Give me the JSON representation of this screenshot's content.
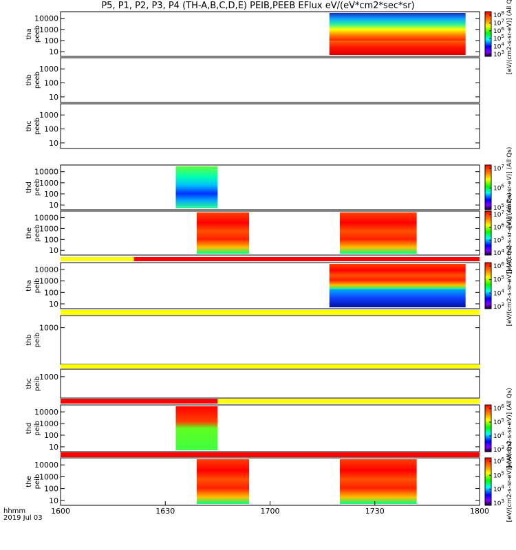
{
  "title": "P5, P1, P2, P3, P4 (TH-A,B,C,D,E) PEIB,PEEB EFlux eV/(eV*cm2*sec*sr)",
  "footer": {
    "hhmm": "hhmm",
    "date": "2019 Jul 03"
  },
  "colors": {
    "red": "#ff0000",
    "yellow": "#ffff00",
    "black": "#000000"
  },
  "chart_data": {
    "type": "heatmap",
    "x_axis": {
      "ticks": [
        "1600",
        "1630",
        "1700",
        "1730",
        "1800"
      ],
      "range_minutes": [
        0,
        120
      ],
      "format": "hhmm"
    },
    "panels": [
      {
        "id": "tha-peeb",
        "label_top": "tha",
        "label_bot": "peeb",
        "y_ticks": [
          "10000",
          "1000",
          "100",
          "10"
        ],
        "ylim": [
          5,
          30000
        ],
        "log": true,
        "blocks": [
          {
            "x0": 77,
            "x1": 116,
            "y0": 100,
            "y1": 30000,
            "palette": "mix-hot-cold"
          },
          {
            "x0": 77,
            "x1": 116,
            "y0": 5,
            "y1": 100,
            "palette": "red"
          }
        ],
        "colorbar": {
          "ticks": [
            "10^8",
            "10^7",
            "10^6",
            "10^5",
            "10^4",
            "10^3"
          ],
          "title": "[eV/(cm2-s-sr-eV)] (All Qs)"
        }
      },
      {
        "id": "thb-peeb",
        "label_top": "thb",
        "label_bot": "peeb",
        "y_ticks": [
          "1000",
          "100",
          "10"
        ],
        "ylim": [
          5,
          5000
        ],
        "log": true,
        "blocks": []
      },
      {
        "id": "thc-peeb",
        "label_top": "thc",
        "label_bot": "peeb",
        "y_ticks": [
          "1000",
          "100",
          "10"
        ],
        "ylim": [
          5,
          5000
        ],
        "log": true,
        "blocks": []
      },
      {
        "id": "thd-peeb",
        "label_top": "thd",
        "label_bot": "peeb",
        "y_ticks": [
          "10000",
          "1000",
          "100",
          "10"
        ],
        "ylim": [
          5,
          30000
        ],
        "log": true,
        "blocks": [
          {
            "x0": 33,
            "x1": 45,
            "y0": 5,
            "y1": 30000,
            "palette": "gradient-cold-bottom"
          }
        ],
        "colorbar": {
          "ticks": [
            "10^7",
            "10^6",
            "10^5"
          ],
          "title": "[eV/(cm2-s-sr-eV)] (All Qs)"
        }
      },
      {
        "id": "the-peeb",
        "label_top": "the",
        "label_bot": "peeb",
        "y_ticks": [
          "10000",
          "1000",
          "100",
          "10"
        ],
        "ylim": [
          5,
          30000
        ],
        "log": true,
        "blocks": [
          {
            "x0": 39,
            "x1": 54,
            "y0": 5,
            "y1": 30000,
            "palette": "mix-hot"
          },
          {
            "x0": 80,
            "x1": 102,
            "y0": 5,
            "y1": 30000,
            "palette": "mix-hot"
          }
        ],
        "colorbar": {
          "ticks": [
            "10^7",
            "10^6",
            "10^5",
            "10^4"
          ],
          "title": "[eV/(cm2-s-sr-eV)] (All Qs)"
        }
      },
      {
        "id": "tha-peib",
        "label_top": "tha",
        "label_bot": "peib",
        "y_ticks": [
          "10000",
          "1000",
          "100",
          "10"
        ],
        "ylim": [
          5,
          30000
        ],
        "log": true,
        "blocks": [
          {
            "x0": 77,
            "x1": 116,
            "y0": 200,
            "y1": 30000,
            "palette": "mix-hot"
          },
          {
            "x0": 77,
            "x1": 116,
            "y0": 5,
            "y1": 200,
            "palette": "noise-cold"
          }
        ],
        "colorbar": {
          "ticks": [
            "10^6",
            "10^5",
            "10^4",
            "10^3"
          ],
          "title": "[eV/(cm2-s-sr-eV)] (All Qs)"
        }
      },
      {
        "id": "thb-peib",
        "label_top": "thb",
        "label_bot": "peib",
        "y_ticks": [
          "1000"
        ],
        "ylim": [
          5,
          5000
        ],
        "log": true,
        "blocks": []
      },
      {
        "id": "thc-peib",
        "label_top": "thc",
        "label_bot": "peib",
        "y_ticks": [
          "1000"
        ],
        "ylim": [
          5,
          5000
        ],
        "log": true,
        "blocks": []
      },
      {
        "id": "thd-peib",
        "label_top": "thd",
        "label_bot": "peib",
        "y_ticks": [
          "10000",
          "1000",
          "100",
          "10"
        ],
        "ylim": [
          5,
          30000
        ],
        "log": true,
        "blocks": [
          {
            "x0": 33,
            "x1": 45,
            "y0": 5,
            "y1": 30000,
            "palette": "red-green"
          }
        ],
        "colorbar": {
          "ticks": [
            "10^6",
            "10^5",
            "10^4",
            "10^3"
          ],
          "title": "[eV/(cm2-s-sr-eV)] (All Qs)"
        }
      },
      {
        "id": "the-peib",
        "label_top": "the",
        "label_bot": "peib",
        "y_ticks": [
          "10000",
          "1000",
          "100",
          "10"
        ],
        "ylim": [
          5,
          30000
        ],
        "log": true,
        "blocks": [
          {
            "x0": 39,
            "x1": 54,
            "y0": 5,
            "y1": 30000,
            "palette": "mix-hot"
          },
          {
            "x0": 80,
            "x1": 102,
            "y0": 5,
            "y1": 30000,
            "palette": "mix-hot"
          }
        ],
        "colorbar": {
          "ticks": [
            "10^6",
            "10^5",
            "10^4",
            "10^3"
          ],
          "title": "[eV/(cm2-s-sr-eV)] (All Qs)"
        }
      }
    ],
    "status_bars": [
      {
        "after_panel": 4,
        "segments": [
          {
            "x0": 0,
            "x1": 21,
            "color": "yellow"
          },
          {
            "x0": 21,
            "x1": 120,
            "color": "red"
          }
        ]
      },
      {
        "after_panel": 5,
        "segments": [
          {
            "x0": 0,
            "x1": 120,
            "color": "yellow"
          }
        ]
      },
      {
        "after_panel": 6,
        "segments": [
          {
            "x0": 0,
            "x1": 120,
            "color": "yellow"
          }
        ]
      },
      {
        "after_panel": 7,
        "segments": [
          {
            "x0": 0,
            "x1": 45,
            "color": "red"
          },
          {
            "x0": 45,
            "x1": 120,
            "color": "yellow"
          }
        ]
      },
      {
        "after_panel": 8,
        "segments": [
          {
            "x0": 0,
            "x1": 120,
            "color": "red"
          }
        ]
      }
    ]
  }
}
